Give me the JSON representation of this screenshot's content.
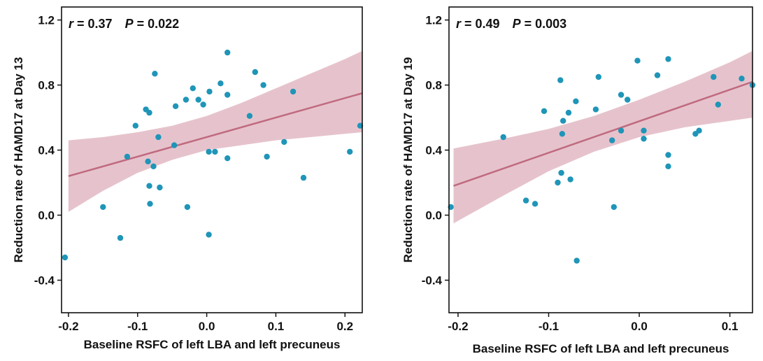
{
  "colors": {
    "point": "#1f95b8",
    "line": "#c06a80",
    "band": "#d9a3b0",
    "frame": "#111111"
  },
  "chart_data": [
    {
      "type": "scatter",
      "title": "",
      "stat_r_label": "r",
      "stat_r_value": " = 0.37",
      "stat_p_label": "P",
      "stat_p_value": " = 0.022",
      "xlabel": "Baseline RSFC of left LBA and left precuneus",
      "ylabel": "Reduction rate of HAMD17 at Day 13",
      "xlim": [
        -0.21,
        0.225
      ],
      "ylim": [
        -0.6,
        1.28
      ],
      "xticks": [
        "-0.2",
        "-0.1",
        "0.0",
        "0.1",
        "0.2"
      ],
      "yticks": [
        "-0.4",
        "0.0",
        "0.4",
        "0.8",
        "1.2"
      ],
      "grid": false,
      "fit_line": [
        [
          -0.2,
          0.24
        ],
        [
          0.225,
          0.75
        ]
      ],
      "confidence_band": [
        [
          -0.2,
          0.02,
          0.46
        ],
        [
          -0.15,
          0.15,
          0.48
        ],
        [
          -0.1,
          0.26,
          0.51
        ],
        [
          -0.05,
          0.34,
          0.55
        ],
        [
          0.0,
          0.4,
          0.61
        ],
        [
          0.05,
          0.43,
          0.69
        ],
        [
          0.1,
          0.46,
          0.78
        ],
        [
          0.15,
          0.48,
          0.87
        ],
        [
          0.2,
          0.5,
          0.96
        ],
        [
          0.225,
          0.51,
          1.01
        ]
      ],
      "points": {
        "x": [
          -0.205,
          -0.15,
          -0.125,
          -0.115,
          -0.103,
          -0.088,
          -0.085,
          -0.083,
          -0.083,
          -0.082,
          -0.077,
          -0.075,
          -0.07,
          -0.068,
          -0.047,
          -0.045,
          -0.03,
          -0.028,
          -0.02,
          -0.012,
          -0.005,
          0.003,
          0.003,
          0.004,
          0.012,
          0.02,
          0.03,
          0.03,
          0.03,
          0.062,
          0.07,
          0.082,
          0.087,
          0.112,
          0.125,
          0.14,
          0.207,
          0.222
        ],
        "y": [
          -0.26,
          0.05,
          -0.14,
          0.36,
          0.55,
          0.65,
          0.33,
          0.63,
          0.18,
          0.07,
          0.3,
          0.87,
          0.48,
          0.17,
          0.43,
          0.67,
          0.71,
          0.05,
          0.78,
          0.71,
          0.68,
          -0.12,
          0.39,
          0.76,
          0.39,
          0.81,
          0.35,
          0.74,
          1.0,
          0.61,
          0.88,
          0.8,
          0.36,
          0.45,
          0.76,
          0.23,
          0.39,
          0.55
        ]
      }
    },
    {
      "type": "scatter",
      "title": "",
      "stat_r_label": "r",
      "stat_r_value": " = 0.49",
      "stat_p_label": "P",
      "stat_p_value": " = 0.003",
      "xlabel": "Baseline RSFC of left LBA and left precuneus",
      "ylabel": "Reduction rate of HAMD17 at Day 19",
      "xlim": [
        -0.21,
        0.125
      ],
      "ylim": [
        -0.6,
        1.28
      ],
      "xticks": [
        "-0.2",
        "-0.1",
        "0.0",
        "0.1"
      ],
      "yticks": [
        "-0.4",
        "0.0",
        "0.4",
        "0.8",
        "1.2"
      ],
      "grid": false,
      "fit_line": [
        [
          -0.205,
          0.18
        ],
        [
          0.125,
          0.82
        ]
      ],
      "confidence_band": [
        [
          -0.205,
          -0.05,
          0.41
        ],
        [
          -0.15,
          0.12,
          0.47
        ],
        [
          -0.1,
          0.27,
          0.53
        ],
        [
          -0.05,
          0.39,
          0.61
        ],
        [
          0.0,
          0.48,
          0.71
        ],
        [
          0.05,
          0.54,
          0.82
        ],
        [
          0.1,
          0.58,
          0.94
        ],
        [
          0.125,
          0.6,
          1.01
        ]
      ],
      "points": {
        "x": [
          -0.208,
          -0.15,
          -0.125,
          -0.115,
          -0.105,
          -0.09,
          -0.087,
          -0.086,
          -0.085,
          -0.084,
          -0.078,
          -0.076,
          -0.07,
          -0.069,
          -0.048,
          -0.045,
          -0.03,
          -0.028,
          -0.02,
          -0.02,
          -0.013,
          -0.002,
          0.005,
          0.005,
          0.02,
          0.032,
          0.032,
          0.032,
          0.062,
          0.066,
          0.082,
          0.087,
          0.113,
          0.125
        ],
        "y": [
          0.05,
          0.48,
          0.09,
          0.07,
          0.64,
          0.2,
          0.83,
          0.26,
          0.5,
          0.58,
          0.63,
          0.22,
          0.7,
          -0.28,
          0.65,
          0.85,
          0.46,
          0.05,
          0.52,
          0.74,
          0.71,
          0.95,
          0.52,
          0.47,
          0.86,
          0.96,
          0.37,
          0.3,
          0.5,
          0.52,
          0.85,
          0.68,
          0.84,
          0.8
        ]
      }
    }
  ]
}
